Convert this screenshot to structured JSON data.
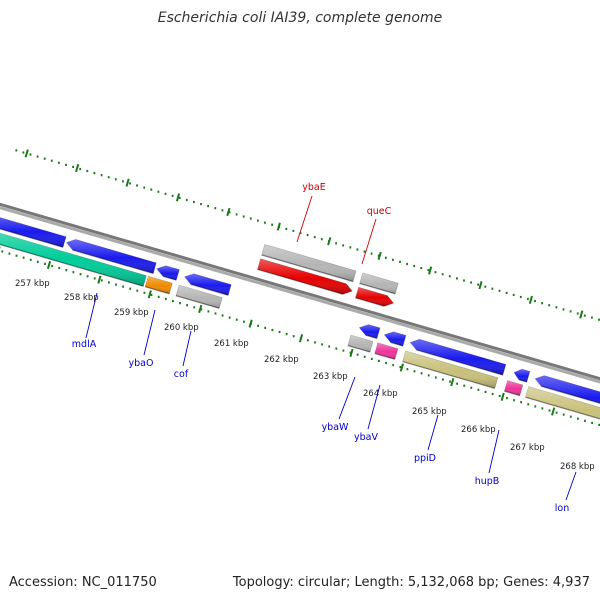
{
  "title": "Escherichia coli IAI39, complete genome",
  "footer": {
    "accession": "Accession: NC_011750",
    "summary": "Topology: circular; Length: 5,132,068 bp; Genes: 4,937"
  },
  "colors": {
    "forward_gene": "#e60000",
    "reverse_gene": "#1a1aee",
    "rna_gene": "#00cc99",
    "pseudo_gene": "#b5b5b5",
    "khaki_gene": "#c8c07a",
    "orange_gene": "#f08a00",
    "pink_gene": "#ee3399",
    "label_forward": "#cc0000",
    "label_reverse": "#0000cc",
    "ticks": "#1a7a1a",
    "backbone": "#888888"
  },
  "scale": {
    "ticks": [
      "257 kbp",
      "258 kbp",
      "259 kbp",
      "260 kbp",
      "261 kbp",
      "262 kbp",
      "263 kbp",
      "264 kbp",
      "265 kbp",
      "266 kbp",
      "267 kbp",
      "268 kbp"
    ]
  },
  "genes": [
    {
      "label": "ybaE",
      "strand": "forward"
    },
    {
      "label": "queC",
      "strand": "forward"
    },
    {
      "label": "mdlA",
      "strand": "reverse"
    },
    {
      "label": "ybaO",
      "strand": "reverse"
    },
    {
      "label": "cof",
      "strand": "reverse"
    },
    {
      "label": "ybaW",
      "strand": "reverse"
    },
    {
      "label": "ybaV",
      "strand": "reverse"
    },
    {
      "label": "ppiD",
      "strand": "reverse"
    },
    {
      "label": "hupB",
      "strand": "reverse"
    },
    {
      "label": "lon",
      "strand": "reverse"
    }
  ]
}
